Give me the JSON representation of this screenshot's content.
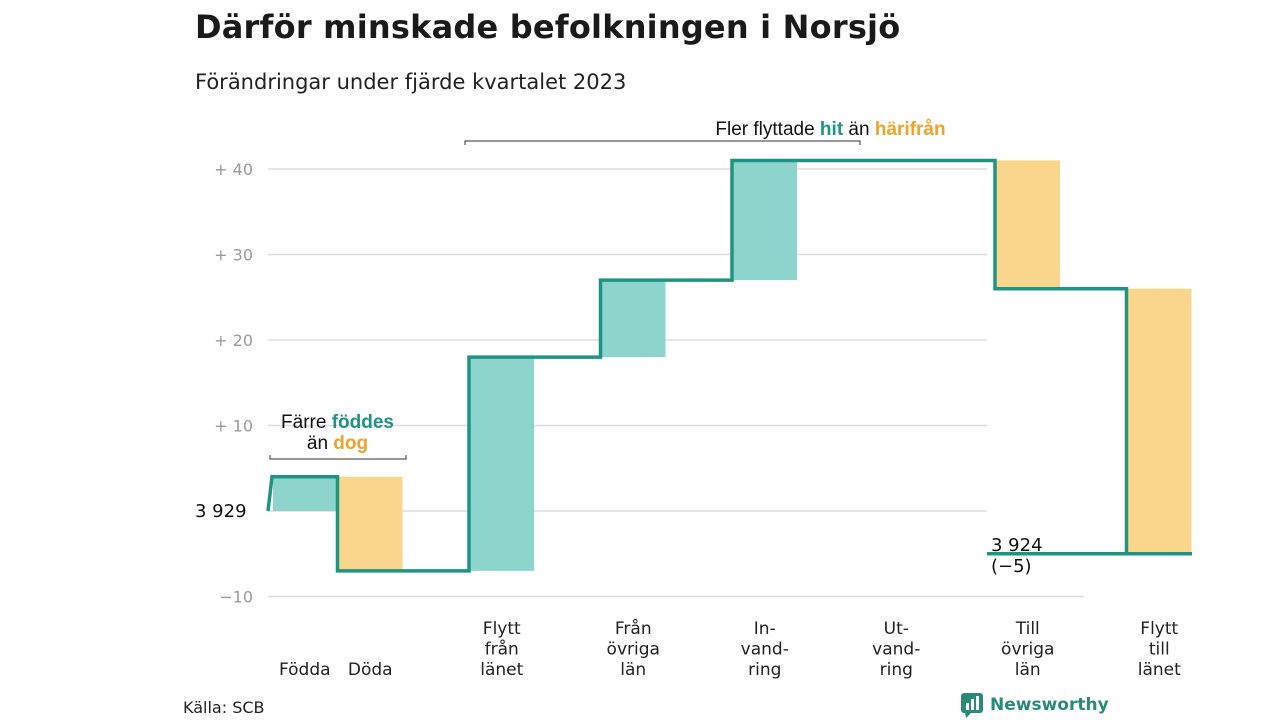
{
  "title": "Därför minskade befolkningen i Norsjö",
  "subtitle": "Förändringar under fjärde kvartalet 2023",
  "source": "Källa: SCB",
  "brand": "Newsworthy",
  "colors": {
    "teal_line": "#1f9483",
    "teal_fill": "#8dd5cc",
    "orange_fill": "#fad68d",
    "orange_text": "#f0a32a",
    "teal_text": "#1f9483",
    "grid": "#dddddd"
  },
  "chart_data": {
    "type": "waterfall",
    "start_value": 3929,
    "start_label": "3 929",
    "end_label": "3 924",
    "end_change_label": "(−5)",
    "ylim": [
      -10,
      40
    ],
    "yticks": [
      {
        "value": 40,
        "label": "+  40"
      },
      {
        "value": 30,
        "label": "+  30"
      },
      {
        "value": 20,
        "label": "+  20"
      },
      {
        "value": 10,
        "label": "+  10"
      },
      {
        "value": -10,
        "label": "−10"
      }
    ],
    "steps": [
      {
        "label": [
          "Födda"
        ],
        "change": 4,
        "kind": "in"
      },
      {
        "label": [
          "Döda"
        ],
        "change": -11,
        "kind": "out"
      },
      {
        "label": [
          "Flytt",
          "från",
          "länet"
        ],
        "change": 25,
        "kind": "in"
      },
      {
        "label": [
          "Från",
          "övriga",
          "län"
        ],
        "change": 9,
        "kind": "in"
      },
      {
        "label": [
          "In-",
          "vand-",
          "ring"
        ],
        "change": 14,
        "kind": "in"
      },
      {
        "label": [
          "Ut-",
          "vand-",
          "ring"
        ],
        "change": 0,
        "kind": "out"
      },
      {
        "label": [
          "Till",
          "övriga",
          "län"
        ],
        "change": -15,
        "kind": "out"
      },
      {
        "label": [
          "Flytt",
          "till",
          "länet"
        ],
        "change": -31,
        "kind": "out"
      }
    ],
    "annotations": [
      {
        "group": "births",
        "parts": [
          {
            "text": "Färre",
            "style": "plain"
          },
          {
            "text": "föddes",
            "style": "teal"
          },
          {
            "text": "än",
            "style": "plain"
          },
          {
            "text": "dog",
            "style": "orange"
          }
        ]
      },
      {
        "group": "migration",
        "parts": [
          {
            "text": "Fler flyttade",
            "style": "plain"
          },
          {
            "text": "hit",
            "style": "teal"
          },
          {
            "text": "än",
            "style": "plain"
          },
          {
            "text": "härifrån",
            "style": "orange"
          }
        ]
      }
    ]
  }
}
